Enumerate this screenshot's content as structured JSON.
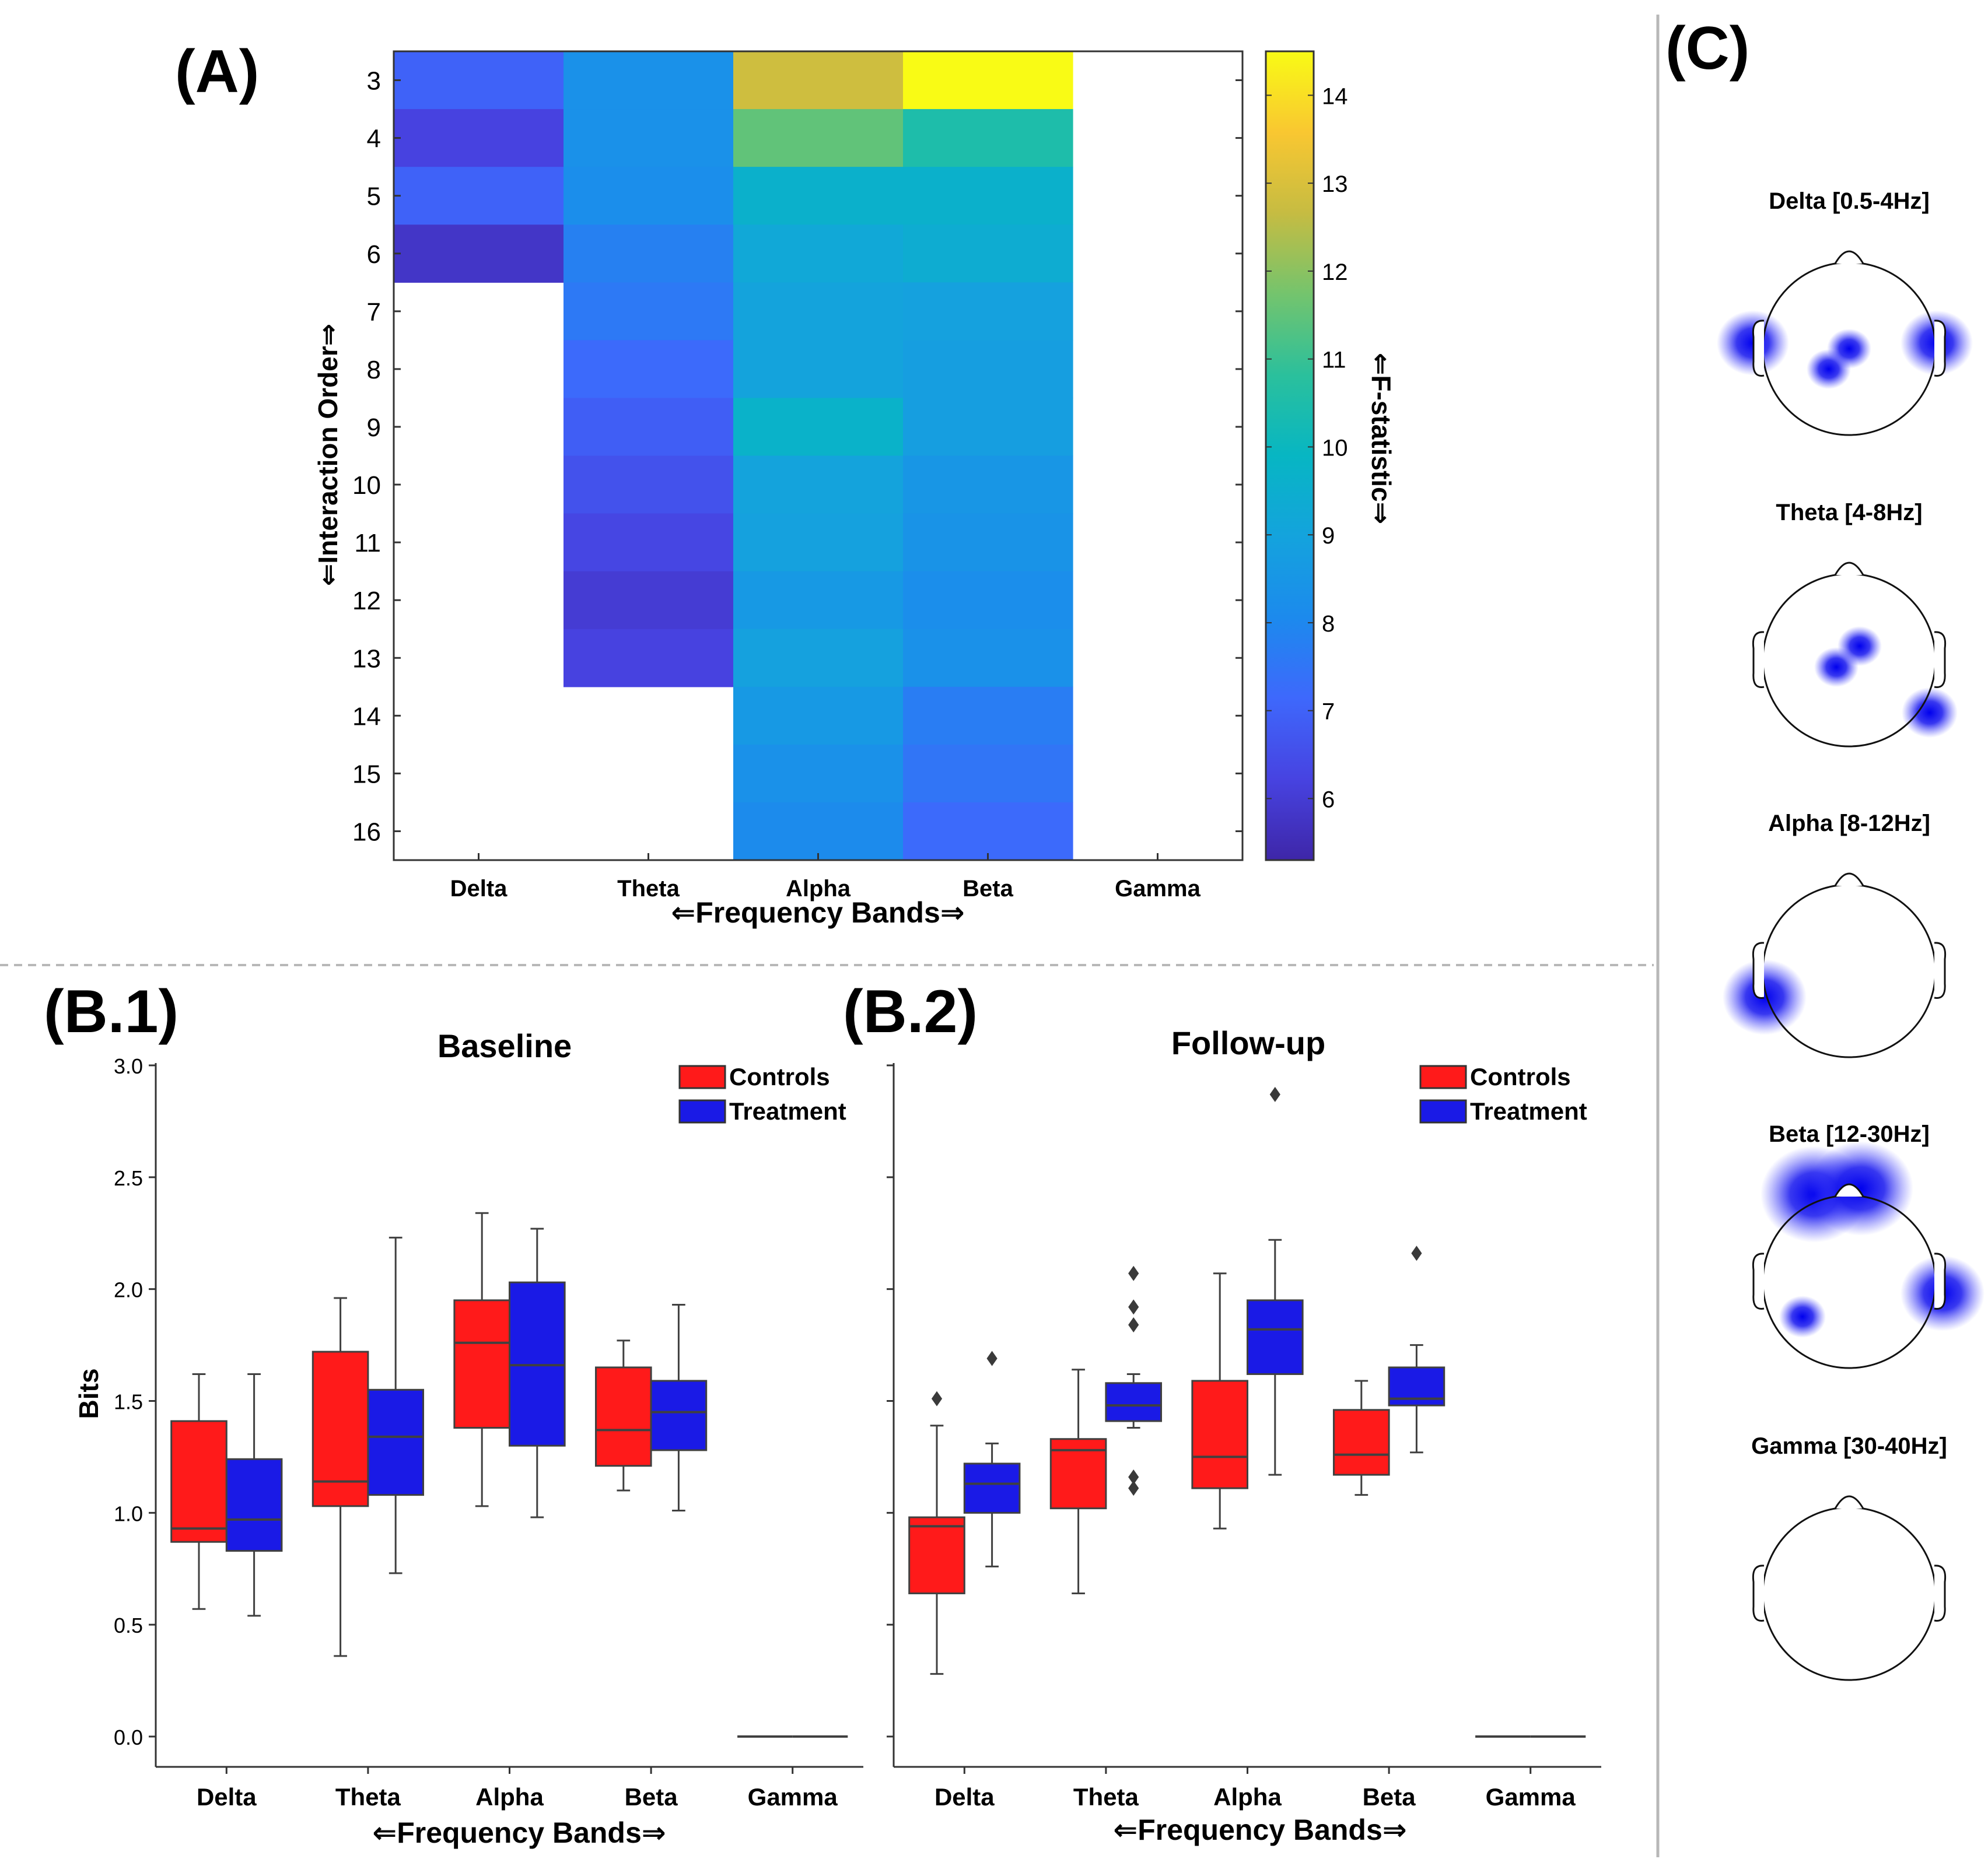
{
  "panel_labels": {
    "a": "(A)",
    "b1": "(B.1)",
    "b2": "(B.2)",
    "c": "(C)"
  },
  "chart_data": [
    {
      "id": "A",
      "type": "heatmap",
      "xlabel": "⇐Frequency Bands⇒",
      "ylabel": "⇐Interaction Order⇒",
      "x_categories": [
        "Delta",
        "Theta",
        "Alpha",
        "Beta",
        "Gamma"
      ],
      "y_categories": [
        3,
        4,
        5,
        6,
        7,
        8,
        9,
        10,
        11,
        12,
        13,
        14,
        15,
        16
      ],
      "colorbar": {
        "label": "⇐F-statistic⇒",
        "range": [
          5.3,
          14.5
        ],
        "ticks": [
          6,
          7,
          8,
          9,
          10,
          11,
          12,
          13,
          14
        ]
      },
      "columns": {
        "Delta": [
          7.0,
          6.2,
          7.0,
          5.8,
          null,
          null,
          null,
          null,
          null,
          null,
          null,
          null,
          null,
          null
        ],
        "Theta": [
          8.3,
          8.3,
          8.2,
          7.8,
          7.6,
          7.2,
          6.9,
          6.6,
          6.3,
          6.0,
          6.2,
          null,
          null,
          null
        ],
        "Alpha": [
          12.8,
          11.5,
          9.6,
          9.2,
          9.0,
          9.0,
          9.7,
          9.0,
          8.9,
          8.6,
          8.9,
          8.6,
          8.3,
          8.1
        ],
        "Beta": [
          14.5,
          10.5,
          9.6,
          9.4,
          8.9,
          8.8,
          8.8,
          8.5,
          8.4,
          8.2,
          8.3,
          7.7,
          7.5,
          7.2
        ],
        "Gamma": [
          null,
          null,
          null,
          null,
          null,
          null,
          null,
          null,
          null,
          null,
          null,
          null,
          null,
          null
        ]
      }
    },
    {
      "id": "B.1",
      "type": "box",
      "title": "Baseline",
      "xlabel": "⇐Frequency Bands⇒",
      "ylabel": "Bits",
      "ylim": [
        0,
        3.0
      ],
      "yticks": [
        "0.0",
        "0.5",
        "1.0",
        "1.5",
        "2.0",
        "2.5",
        "3.0"
      ],
      "categories": [
        "Delta",
        "Theta",
        "Alpha",
        "Beta",
        "Gamma"
      ],
      "series": [
        {
          "name": "Controls",
          "color": "#ff1a1a",
          "boxes": [
            {
              "min": 0.57,
              "q1": 0.87,
              "median": 0.93,
              "q3": 1.41,
              "max": 1.62,
              "outliers": []
            },
            {
              "min": 0.36,
              "q1": 1.03,
              "median": 1.14,
              "q3": 1.72,
              "max": 1.96,
              "outliers": []
            },
            {
              "min": 1.03,
              "q1": 1.38,
              "median": 1.76,
              "q3": 1.95,
              "max": 2.34,
              "outliers": []
            },
            {
              "min": 1.1,
              "q1": 1.21,
              "median": 1.37,
              "q3": 1.65,
              "max": 1.77,
              "outliers": []
            },
            {
              "min": 0,
              "q1": 0,
              "median": 0,
              "q3": 0,
              "max": 0,
              "outliers": []
            }
          ]
        },
        {
          "name": "Treatment",
          "color": "#1a1ae6",
          "boxes": [
            {
              "min": 0.54,
              "q1": 0.83,
              "median": 0.97,
              "q3": 1.24,
              "max": 1.62,
              "outliers": []
            },
            {
              "min": 0.73,
              "q1": 1.08,
              "median": 1.34,
              "q3": 1.55,
              "max": 2.23,
              "outliers": []
            },
            {
              "min": 0.98,
              "q1": 1.3,
              "median": 1.66,
              "q3": 2.03,
              "max": 2.27,
              "outliers": []
            },
            {
              "min": 1.01,
              "q1": 1.28,
              "median": 1.45,
              "q3": 1.59,
              "max": 1.93,
              "outliers": []
            },
            {
              "min": 0,
              "q1": 0,
              "median": 0,
              "q3": 0,
              "max": 0,
              "outliers": []
            }
          ]
        }
      ],
      "legend": "top-right"
    },
    {
      "id": "B.2",
      "type": "box",
      "title": "Follow-up",
      "xlabel": "⇐Frequency Bands⇒",
      "ylabel": "",
      "ylim": [
        0,
        3.0
      ],
      "categories": [
        "Delta",
        "Theta",
        "Alpha",
        "Beta",
        "Gamma"
      ],
      "series": [
        {
          "name": "Controls",
          "color": "#ff1a1a",
          "boxes": [
            {
              "min": 0.28,
              "q1": 0.64,
              "median": 0.94,
              "q3": 0.98,
              "max": 1.39,
              "outliers": [
                1.51
              ]
            },
            {
              "min": 0.64,
              "q1": 1.02,
              "median": 1.28,
              "q3": 1.33,
              "max": 1.64,
              "outliers": []
            },
            {
              "min": 0.93,
              "q1": 1.11,
              "median": 1.25,
              "q3": 1.59,
              "max": 2.07,
              "outliers": []
            },
            {
              "min": 1.08,
              "q1": 1.17,
              "median": 1.26,
              "q3": 1.46,
              "max": 1.59,
              "outliers": []
            },
            {
              "min": 0,
              "q1": 0,
              "median": 0,
              "q3": 0,
              "max": 0,
              "outliers": []
            }
          ]
        },
        {
          "name": "Treatment",
          "color": "#1a1ae6",
          "boxes": [
            {
              "min": 0.76,
              "q1": 1.0,
              "median": 1.13,
              "q3": 1.22,
              "max": 1.31,
              "outliers": [
                1.69
              ]
            },
            {
              "min": 1.38,
              "q1": 1.41,
              "median": 1.48,
              "q3": 1.58,
              "max": 1.62,
              "outliers": [
                1.11,
                1.16,
                1.84,
                1.92,
                2.07
              ]
            },
            {
              "min": 1.17,
              "q1": 1.62,
              "median": 1.82,
              "q3": 1.95,
              "max": 2.22,
              "outliers": [
                2.87
              ]
            },
            {
              "min": 1.27,
              "q1": 1.48,
              "median": 1.51,
              "q3": 1.65,
              "max": 1.75,
              "outliers": [
                2.16
              ]
            },
            {
              "min": 0,
              "q1": 0,
              "median": 0,
              "q3": 0,
              "max": 0,
              "outliers": []
            }
          ]
        }
      ],
      "legend": "top-right"
    },
    {
      "id": "C",
      "type": "topoplot",
      "maps": [
        {
          "title": "Delta [0.5-4Hz]",
          "spots": [
            "left-temporal",
            "right-temporal",
            "central-posterior"
          ]
        },
        {
          "title": "Theta [4-8Hz]",
          "spots": [
            "central",
            "right-temporal"
          ]
        },
        {
          "title": "Alpha [8-12Hz]",
          "spots": [
            "left-temporal"
          ]
        },
        {
          "title": "Beta [12-30Hz]",
          "spots": [
            "frontal",
            "right-temporal",
            "left-posterior"
          ]
        },
        {
          "title": "Gamma [30-40Hz]",
          "spots": []
        }
      ]
    }
  ]
}
